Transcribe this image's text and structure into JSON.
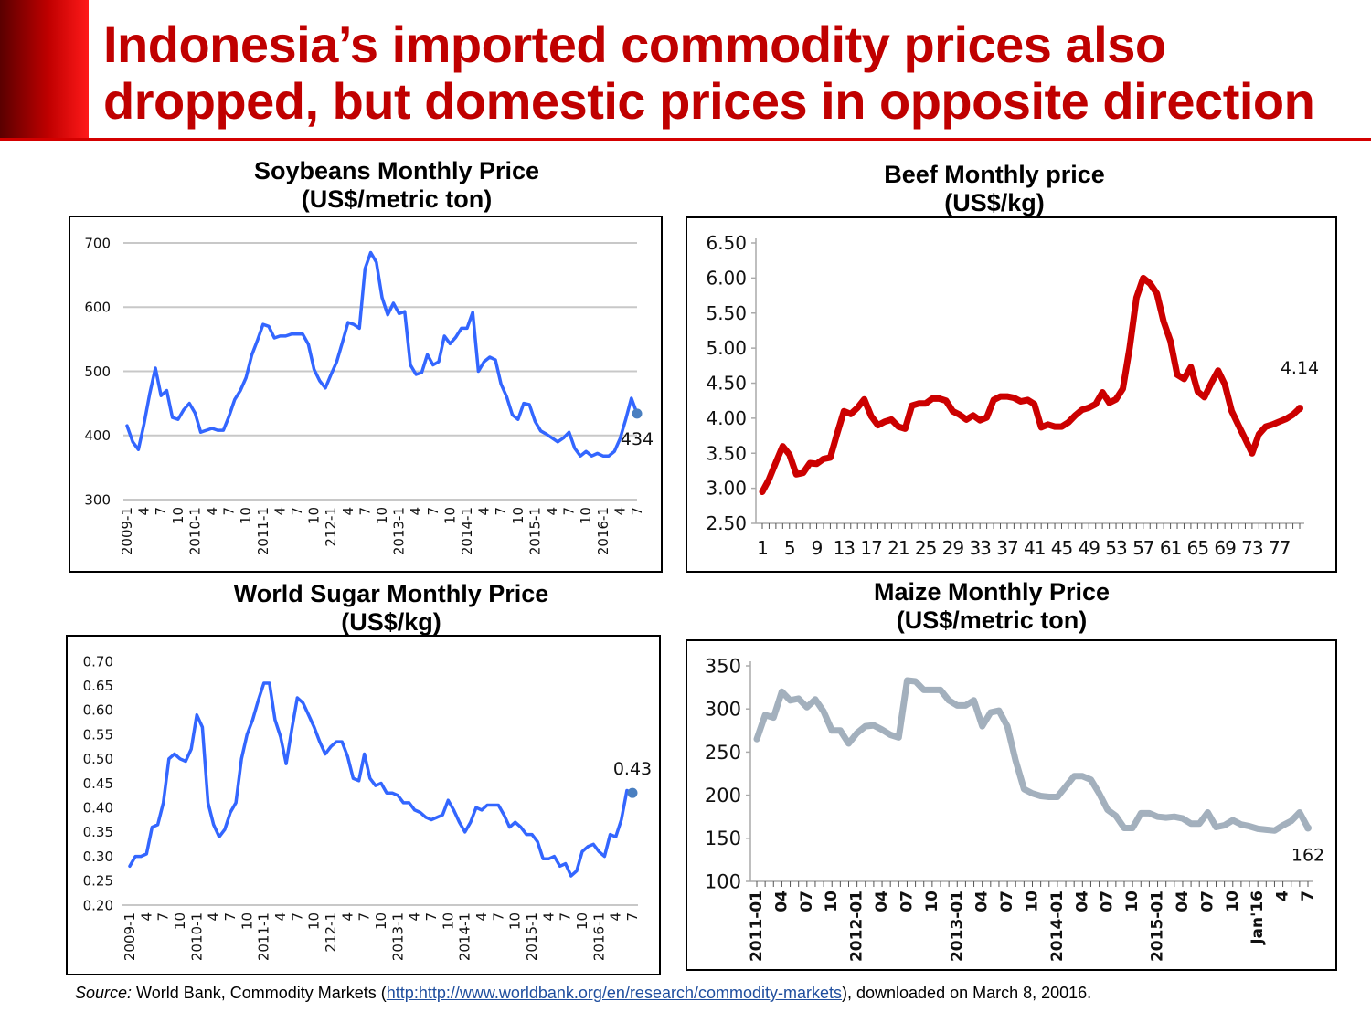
{
  "slide": {
    "title_line1": "Indonesia’s imported commodity prices also",
    "title_line2": "dropped, but domestic prices in opposite direction",
    "accent_color": "#c00000"
  },
  "source": {
    "label": "Source:",
    "text_before": " World Bank, Commodity Markets (",
    "link": "http:http://www.worldbank.org/en/research/commodity-markets",
    "text_after": "), downloaded on March 8, 20016."
  },
  "chart_data": [
    {
      "id": "soy",
      "type": "line",
      "title": "Soybeans Monthly Price",
      "subtitle": "(US$/metric ton)",
      "ylim": [
        300,
        700
      ],
      "yticks": [
        "300",
        "400",
        "500",
        "600",
        "700"
      ],
      "grid": true,
      "color": "#3366ff",
      "xlabels": [
        "2009-1",
        "4",
        "7",
        "10",
        "2010-1",
        "4",
        "7",
        "10",
        "2011-1",
        "4",
        "7",
        "10",
        "212-1",
        "4",
        "7",
        "10",
        "2013-1",
        "4",
        "7",
        "10",
        "2014-1",
        "4",
        "7",
        "10",
        "2015-1",
        "4",
        "7",
        "10",
        "2016-1",
        "4",
        "7"
      ],
      "values": [
        415,
        390,
        378,
        418,
        465,
        505,
        462,
        470,
        428,
        425,
        440,
        450,
        435,
        405,
        408,
        411,
        408,
        408,
        430,
        456,
        470,
        490,
        525,
        548,
        573,
        570,
        552,
        555,
        555,
        558,
        558,
        558,
        542,
        503,
        485,
        474,
        495,
        515,
        545,
        576,
        573,
        567,
        660,
        685,
        670,
        615,
        588,
        606,
        590,
        593,
        510,
        495,
        498,
        526,
        510,
        515,
        555,
        543,
        553,
        567,
        567,
        592,
        500,
        515,
        522,
        518,
        480,
        460,
        432,
        425,
        450,
        448,
        422,
        407,
        402,
        396,
        390,
        396,
        405,
        380,
        368,
        375,
        368,
        372,
        368,
        368,
        375,
        395,
        425,
        458,
        434
      ],
      "end_label": "434"
    },
    {
      "id": "beef",
      "type": "line",
      "title": "Beef Monthly price",
      "subtitle": "(US$/kg)",
      "ylim": [
        2.5,
        6.5
      ],
      "yticks": [
        "2.50",
        "3.00",
        "3.50",
        "4.00",
        "4.50",
        "5.00",
        "5.50",
        "6.00",
        "6.50"
      ],
      "grid": false,
      "color": "#cc0000",
      "xlabels": [
        "1",
        "5",
        "9",
        "13",
        "17",
        "21",
        "25",
        "29",
        "33",
        "37",
        "41",
        "45",
        "49",
        "53",
        "57",
        "61",
        "65",
        "69",
        "73",
        "77"
      ],
      "values": [
        2.95,
        3.13,
        3.37,
        3.6,
        3.48,
        3.2,
        3.22,
        3.36,
        3.35,
        3.42,
        3.44,
        3.78,
        4.1,
        4.06,
        4.15,
        4.27,
        4.03,
        3.9,
        3.95,
        3.98,
        3.88,
        3.85,
        4.18,
        4.21,
        4.21,
        4.28,
        4.28,
        4.25,
        4.1,
        4.05,
        3.98,
        4.04,
        3.97,
        4.01,
        4.26,
        4.31,
        4.31,
        4.29,
        4.24,
        4.26,
        4.2,
        3.87,
        3.91,
        3.88,
        3.88,
        3.94,
        4.04,
        4.12,
        4.15,
        4.2,
        4.37,
        4.22,
        4.27,
        4.42,
        5.0,
        5.72,
        6.0,
        5.92,
        5.78,
        5.38,
        5.1,
        4.62,
        4.56,
        4.73,
        4.38,
        4.3,
        4.5,
        4.68,
        4.48,
        4.1,
        3.9,
        3.7,
        3.5,
        3.77,
        3.88,
        3.91,
        3.95,
        3.99,
        4.05,
        4.14
      ],
      "end_label": "4.14"
    },
    {
      "id": "sugar",
      "type": "line",
      "title": "World Sugar Monthly Price",
      "subtitle": "(US$/kg)",
      "ylim": [
        0.2,
        0.7
      ],
      "yticks": [
        "0.20",
        "0.25",
        "0.30",
        "0.35",
        "0.40",
        "0.45",
        "0.50",
        "0.55",
        "0.60",
        "0.65",
        "0.70"
      ],
      "grid": false,
      "color": "#3366ff",
      "xlabels": [
        "2009-1",
        "4",
        "7",
        "10",
        "2010-1",
        "4",
        "7",
        "10",
        "2011-1",
        "4",
        "7",
        "10",
        "212-1",
        "4",
        "7",
        "10",
        "2013-1",
        "4",
        "7",
        "10",
        "2014-1",
        "4",
        "7",
        "10",
        "2015-1",
        "4",
        "7",
        "10",
        "2016-1",
        "4",
        "7"
      ],
      "values": [
        0.28,
        0.3,
        0.3,
        0.305,
        0.36,
        0.365,
        0.41,
        0.5,
        0.51,
        0.5,
        0.495,
        0.52,
        0.59,
        0.565,
        0.41,
        0.365,
        0.34,
        0.355,
        0.39,
        0.41,
        0.5,
        0.55,
        0.58,
        0.62,
        0.655,
        0.655,
        0.58,
        0.545,
        0.49,
        0.56,
        0.625,
        0.615,
        0.59,
        0.565,
        0.535,
        0.51,
        0.525,
        0.535,
        0.535,
        0.505,
        0.46,
        0.455,
        0.51,
        0.46,
        0.445,
        0.45,
        0.43,
        0.43,
        0.425,
        0.41,
        0.41,
        0.395,
        0.39,
        0.38,
        0.375,
        0.38,
        0.385,
        0.415,
        0.395,
        0.37,
        0.35,
        0.37,
        0.4,
        0.395,
        0.405,
        0.405,
        0.405,
        0.385,
        0.36,
        0.37,
        0.36,
        0.345,
        0.345,
        0.33,
        0.295,
        0.295,
        0.3,
        0.28,
        0.285,
        0.26,
        0.27,
        0.31,
        0.32,
        0.325,
        0.31,
        0.3,
        0.345,
        0.34,
        0.375,
        0.435,
        0.43
      ],
      "end_label": "0.43"
    },
    {
      "id": "maize",
      "type": "line",
      "title": "Maize Monthly Price",
      "subtitle": "(US$/metric ton)",
      "ylim": [
        100,
        350
      ],
      "yticks": [
        "100",
        "150",
        "200",
        "250",
        "300",
        "350"
      ],
      "grid": false,
      "color": "#a3b0bd",
      "xlabels": [
        "2011-01",
        "04",
        "07",
        "10",
        "2012-01",
        "04",
        "07",
        "10",
        "2013-01",
        "04",
        "07",
        "10",
        "2014-01",
        "04",
        "07",
        "10",
        "2015-01",
        "04",
        "07",
        "10",
        "Jan'16",
        "4",
        "7"
      ],
      "values": [
        265,
        293,
        290,
        320,
        310,
        312,
        302,
        311,
        297,
        275,
        275,
        260,
        272,
        280,
        281,
        276,
        270,
        267,
        333,
        332,
        322,
        322,
        322,
        310,
        304,
        304,
        310,
        280,
        296,
        298,
        280,
        240,
        207,
        202,
        199,
        198,
        198,
        210,
        222,
        222,
        218,
        202,
        183,
        176,
        162,
        162,
        179,
        179,
        175,
        174,
        175,
        173,
        167,
        167,
        180,
        163,
        165,
        171,
        166,
        164,
        161,
        160,
        159,
        165,
        170,
        180,
        162
      ],
      "end_label": "162"
    }
  ]
}
